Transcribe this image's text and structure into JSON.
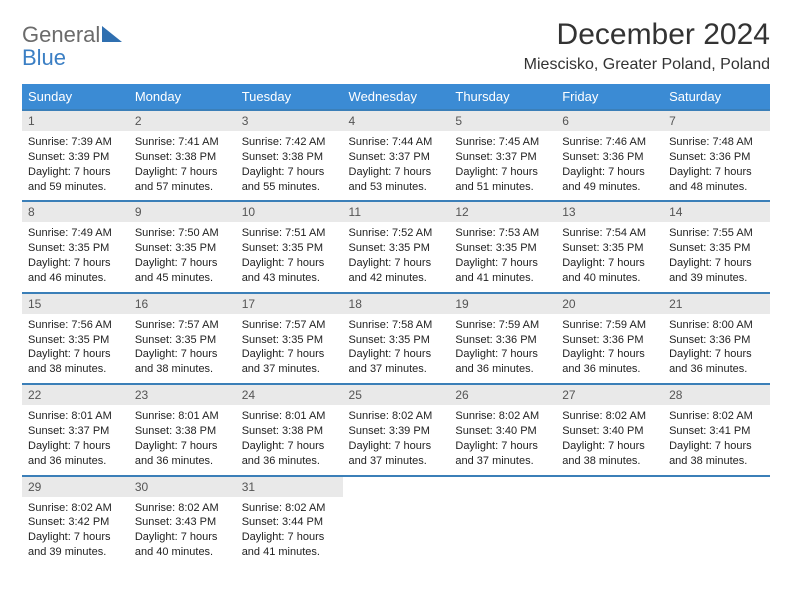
{
  "logo": {
    "general": "General",
    "blue": "Blue"
  },
  "title": "December 2024",
  "location": "Miescisko, Greater Poland, Poland",
  "colors": {
    "header_bg": "#3b8bd4",
    "header_text": "#ffffff",
    "rule": "#3b7fb8",
    "daynum_bg": "#e9e9e9",
    "logo_general": "#6b6b6b",
    "logo_blue": "#3b7fc4",
    "logo_triangle": "#2f6fb0"
  },
  "weekdays": [
    "Sunday",
    "Monday",
    "Tuesday",
    "Wednesday",
    "Thursday",
    "Friday",
    "Saturday"
  ],
  "weeks": [
    [
      {
        "n": "1",
        "sr": "7:39 AM",
        "ss": "3:39 PM",
        "dl": "7 hours and 59 minutes."
      },
      {
        "n": "2",
        "sr": "7:41 AM",
        "ss": "3:38 PM",
        "dl": "7 hours and 57 minutes."
      },
      {
        "n": "3",
        "sr": "7:42 AM",
        "ss": "3:38 PM",
        "dl": "7 hours and 55 minutes."
      },
      {
        "n": "4",
        "sr": "7:44 AM",
        "ss": "3:37 PM",
        "dl": "7 hours and 53 minutes."
      },
      {
        "n": "5",
        "sr": "7:45 AM",
        "ss": "3:37 PM",
        "dl": "7 hours and 51 minutes."
      },
      {
        "n": "6",
        "sr": "7:46 AM",
        "ss": "3:36 PM",
        "dl": "7 hours and 49 minutes."
      },
      {
        "n": "7",
        "sr": "7:48 AM",
        "ss": "3:36 PM",
        "dl": "7 hours and 48 minutes."
      }
    ],
    [
      {
        "n": "8",
        "sr": "7:49 AM",
        "ss": "3:35 PM",
        "dl": "7 hours and 46 minutes."
      },
      {
        "n": "9",
        "sr": "7:50 AM",
        "ss": "3:35 PM",
        "dl": "7 hours and 45 minutes."
      },
      {
        "n": "10",
        "sr": "7:51 AM",
        "ss": "3:35 PM",
        "dl": "7 hours and 43 minutes."
      },
      {
        "n": "11",
        "sr": "7:52 AM",
        "ss": "3:35 PM",
        "dl": "7 hours and 42 minutes."
      },
      {
        "n": "12",
        "sr": "7:53 AM",
        "ss": "3:35 PM",
        "dl": "7 hours and 41 minutes."
      },
      {
        "n": "13",
        "sr": "7:54 AM",
        "ss": "3:35 PM",
        "dl": "7 hours and 40 minutes."
      },
      {
        "n": "14",
        "sr": "7:55 AM",
        "ss": "3:35 PM",
        "dl": "7 hours and 39 minutes."
      }
    ],
    [
      {
        "n": "15",
        "sr": "7:56 AM",
        "ss": "3:35 PM",
        "dl": "7 hours and 38 minutes."
      },
      {
        "n": "16",
        "sr": "7:57 AM",
        "ss": "3:35 PM",
        "dl": "7 hours and 38 minutes."
      },
      {
        "n": "17",
        "sr": "7:57 AM",
        "ss": "3:35 PM",
        "dl": "7 hours and 37 minutes."
      },
      {
        "n": "18",
        "sr": "7:58 AM",
        "ss": "3:35 PM",
        "dl": "7 hours and 37 minutes."
      },
      {
        "n": "19",
        "sr": "7:59 AM",
        "ss": "3:36 PM",
        "dl": "7 hours and 36 minutes."
      },
      {
        "n": "20",
        "sr": "7:59 AM",
        "ss": "3:36 PM",
        "dl": "7 hours and 36 minutes."
      },
      {
        "n": "21",
        "sr": "8:00 AM",
        "ss": "3:36 PM",
        "dl": "7 hours and 36 minutes."
      }
    ],
    [
      {
        "n": "22",
        "sr": "8:01 AM",
        "ss": "3:37 PM",
        "dl": "7 hours and 36 minutes."
      },
      {
        "n": "23",
        "sr": "8:01 AM",
        "ss": "3:38 PM",
        "dl": "7 hours and 36 minutes."
      },
      {
        "n": "24",
        "sr": "8:01 AM",
        "ss": "3:38 PM",
        "dl": "7 hours and 36 minutes."
      },
      {
        "n": "25",
        "sr": "8:02 AM",
        "ss": "3:39 PM",
        "dl": "7 hours and 37 minutes."
      },
      {
        "n": "26",
        "sr": "8:02 AM",
        "ss": "3:40 PM",
        "dl": "7 hours and 37 minutes."
      },
      {
        "n": "27",
        "sr": "8:02 AM",
        "ss": "3:40 PM",
        "dl": "7 hours and 38 minutes."
      },
      {
        "n": "28",
        "sr": "8:02 AM",
        "ss": "3:41 PM",
        "dl": "7 hours and 38 minutes."
      }
    ],
    [
      {
        "n": "29",
        "sr": "8:02 AM",
        "ss": "3:42 PM",
        "dl": "7 hours and 39 minutes."
      },
      {
        "n": "30",
        "sr": "8:02 AM",
        "ss": "3:43 PM",
        "dl": "7 hours and 40 minutes."
      },
      {
        "n": "31",
        "sr": "8:02 AM",
        "ss": "3:44 PM",
        "dl": "7 hours and 41 minutes."
      },
      null,
      null,
      null,
      null
    ]
  ],
  "labels": {
    "sunrise": "Sunrise: ",
    "sunset": "Sunset: ",
    "daylight": "Daylight: "
  }
}
